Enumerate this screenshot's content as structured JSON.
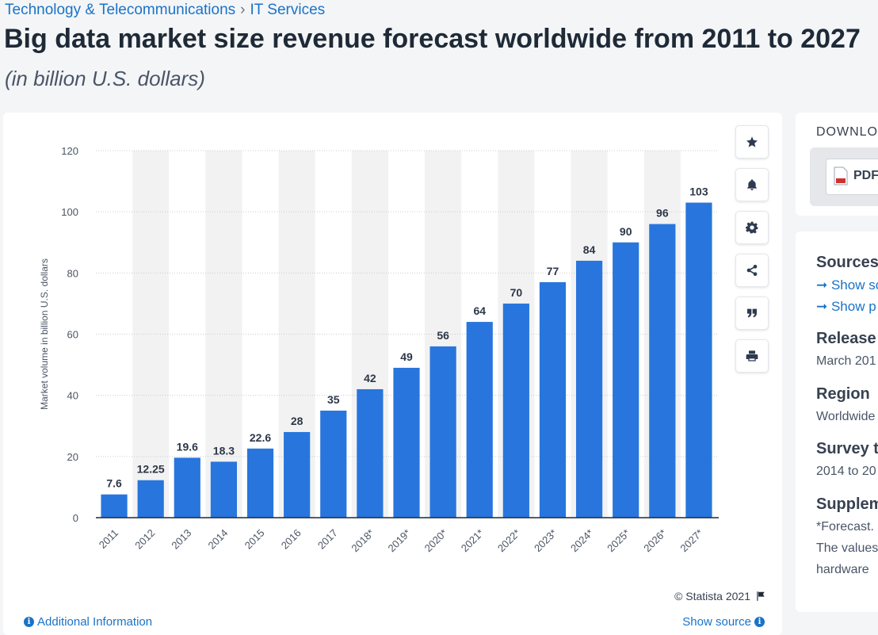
{
  "breadcrumb": {
    "category": "Technology & Telecommunications",
    "separator": "›",
    "subcategory": "IT Services"
  },
  "title": "Big data market size revenue forecast worldwide from 2011 to 2027",
  "subtitle": "(in billion U.S. dollars)",
  "colors": {
    "bar": "#2876dd",
    "accent": "#1a73c7",
    "band": "#f2f2f2",
    "grid": "#c9ccd1"
  },
  "toolbar": [
    "star-icon",
    "bell-icon",
    "gear-icon",
    "share-icon",
    "quote-icon",
    "print-icon"
  ],
  "footer": {
    "copyright": "© Statista 2021",
    "additional_info": "Additional Information",
    "show_source": "Show source"
  },
  "download": {
    "label": "DOWNLO",
    "pdf_label": "PDF"
  },
  "sidebar": {
    "sources_heading": "Sources",
    "sources_link1": "➞ Show sc",
    "sources_link2": "➞ Show p",
    "release_heading": "Release d",
    "release_value": "March 201",
    "region_heading": "Region",
    "region_value": "Worldwide",
    "survey_heading": "Survey ti",
    "survey_value": "2014 to 20",
    "supplement_heading": "Supplem",
    "supplement_line1": "*Forecast.",
    "supplement_line2": "The values",
    "supplement_line3": "hardware"
  },
  "chart_data": {
    "type": "bar",
    "categories": [
      "2011",
      "2012",
      "2013",
      "2014",
      "2015",
      "2016",
      "2017",
      "2018*",
      "2019*",
      "2020*",
      "2021*",
      "2022*",
      "2023*",
      "2024*",
      "2025*",
      "2026*",
      "2027*"
    ],
    "values": [
      7.6,
      12.25,
      19.6,
      18.3,
      22.6,
      28,
      35,
      42,
      49,
      56,
      64,
      70,
      77,
      84,
      90,
      96,
      103
    ],
    "value_labels": [
      "7.6",
      "12.25",
      "19.6",
      "18.3",
      "22.6",
      "28",
      "35",
      "42",
      "49",
      "56",
      "64",
      "70",
      "77",
      "84",
      "90",
      "96",
      "103"
    ],
    "ylabel": "Market volume in billion U.S. dollars",
    "xlabel": "",
    "ylim": [
      0,
      120
    ],
    "yticks": [
      0,
      20,
      40,
      60,
      80,
      100,
      120
    ],
    "grid": true,
    "legend": "none"
  }
}
